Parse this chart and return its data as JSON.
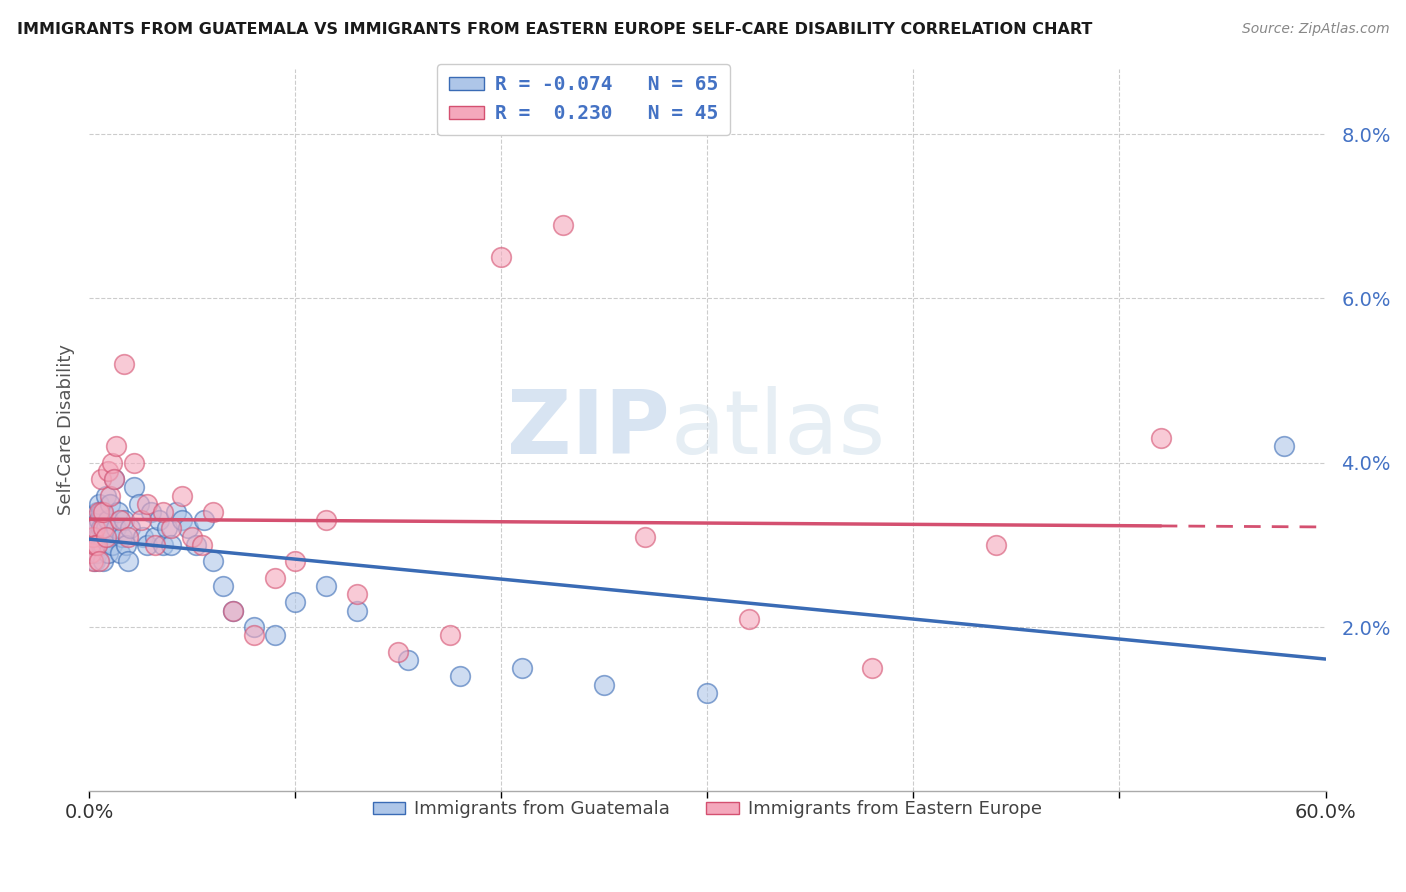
{
  "title": "IMMIGRANTS FROM GUATEMALA VS IMMIGRANTS FROM EASTERN EUROPE SELF-CARE DISABILITY CORRELATION CHART",
  "source": "Source: ZipAtlas.com",
  "ylabel": "Self-Care Disability",
  "xlim": [
    0.0,
    0.6
  ],
  "ylim": [
    0.0,
    0.088
  ],
  "yticks": [
    0.02,
    0.04,
    0.06,
    0.08
  ],
  "ytick_labels": [
    "2.0%",
    "4.0%",
    "6.0%",
    "8.0%"
  ],
  "legend_R1": "R = -0.074",
  "legend_N1": "N = 65",
  "legend_R2": "R =  0.230",
  "legend_N2": "N = 45",
  "color_blue": "#aec6e8",
  "color_pink": "#f4a8bc",
  "color_blue_line": "#3a6bb5",
  "color_pink_line": "#d45070",
  "color_blue_text": "#4472c4",
  "background_color": "#ffffff",
  "grid_color": "#cccccc",
  "watermark_zip": "ZIP",
  "watermark_atlas": "atlas",
  "guatemala_x": [
    0.001,
    0.001,
    0.002,
    0.002,
    0.002,
    0.003,
    0.003,
    0.003,
    0.004,
    0.004,
    0.004,
    0.005,
    0.005,
    0.005,
    0.006,
    0.006,
    0.006,
    0.007,
    0.007,
    0.007,
    0.008,
    0.008,
    0.009,
    0.009,
    0.01,
    0.01,
    0.011,
    0.012,
    0.013,
    0.014,
    0.015,
    0.016,
    0.017,
    0.018,
    0.019,
    0.02,
    0.022,
    0.024,
    0.026,
    0.028,
    0.03,
    0.032,
    0.034,
    0.036,
    0.038,
    0.04,
    0.042,
    0.045,
    0.048,
    0.052,
    0.056,
    0.06,
    0.065,
    0.07,
    0.08,
    0.09,
    0.1,
    0.115,
    0.13,
    0.155,
    0.18,
    0.21,
    0.25,
    0.3,
    0.58
  ],
  "guatemala_y": [
    0.032,
    0.03,
    0.031,
    0.033,
    0.029,
    0.032,
    0.03,
    0.028,
    0.034,
    0.031,
    0.029,
    0.033,
    0.031,
    0.035,
    0.03,
    0.032,
    0.034,
    0.031,
    0.03,
    0.028,
    0.036,
    0.032,
    0.033,
    0.029,
    0.031,
    0.035,
    0.03,
    0.038,
    0.032,
    0.034,
    0.029,
    0.031,
    0.033,
    0.03,
    0.028,
    0.032,
    0.037,
    0.035,
    0.031,
    0.03,
    0.034,
    0.031,
    0.033,
    0.03,
    0.032,
    0.03,
    0.034,
    0.033,
    0.032,
    0.03,
    0.033,
    0.028,
    0.025,
    0.022,
    0.02,
    0.019,
    0.023,
    0.025,
    0.022,
    0.016,
    0.014,
    0.015,
    0.013,
    0.012,
    0.042
  ],
  "eastern_europe_x": [
    0.001,
    0.002,
    0.002,
    0.003,
    0.003,
    0.004,
    0.005,
    0.005,
    0.006,
    0.007,
    0.007,
    0.008,
    0.009,
    0.01,
    0.011,
    0.012,
    0.013,
    0.015,
    0.017,
    0.019,
    0.022,
    0.025,
    0.028,
    0.032,
    0.036,
    0.04,
    0.045,
    0.05,
    0.055,
    0.06,
    0.07,
    0.08,
    0.09,
    0.1,
    0.115,
    0.13,
    0.15,
    0.175,
    0.2,
    0.23,
    0.27,
    0.32,
    0.38,
    0.44,
    0.52
  ],
  "eastern_europe_y": [
    0.029,
    0.031,
    0.028,
    0.032,
    0.03,
    0.03,
    0.034,
    0.028,
    0.038,
    0.032,
    0.034,
    0.031,
    0.039,
    0.036,
    0.04,
    0.038,
    0.042,
    0.033,
    0.052,
    0.031,
    0.04,
    0.033,
    0.035,
    0.03,
    0.034,
    0.032,
    0.036,
    0.031,
    0.03,
    0.034,
    0.022,
    0.019,
    0.026,
    0.028,
    0.033,
    0.024,
    0.017,
    0.019,
    0.065,
    0.069,
    0.031,
    0.021,
    0.015,
    0.03,
    0.043
  ]
}
